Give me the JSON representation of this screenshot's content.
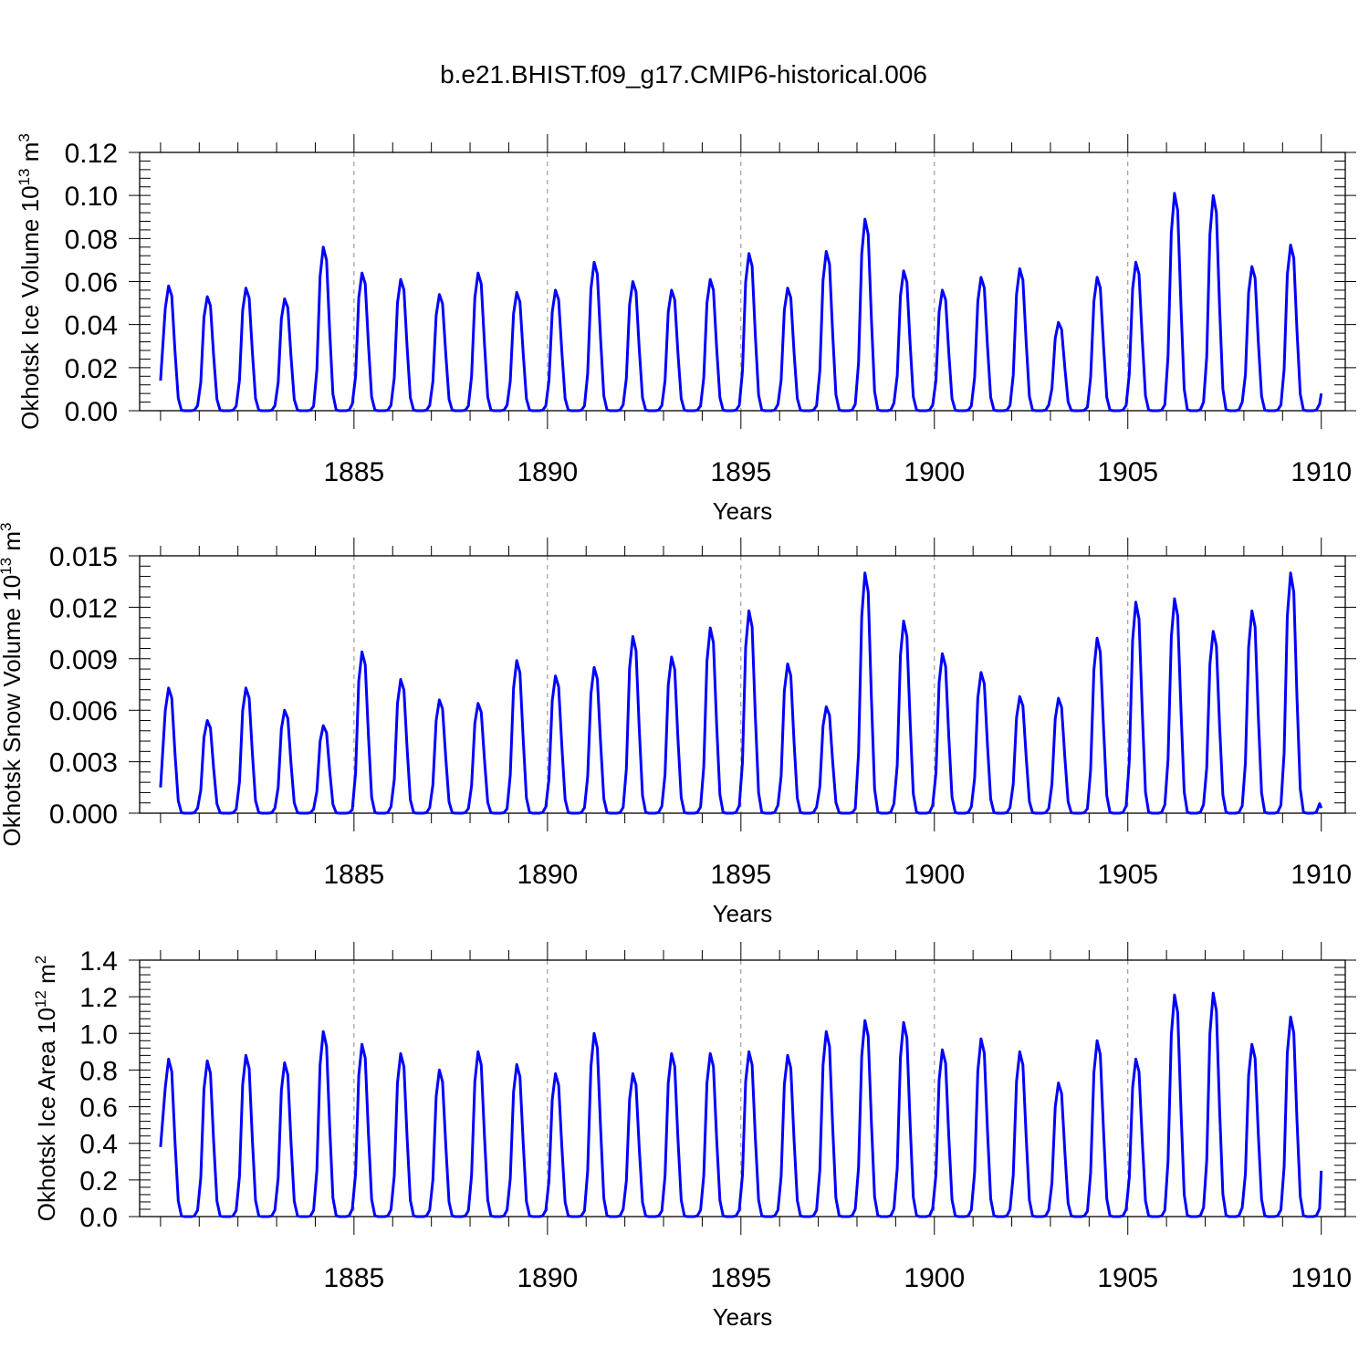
{
  "title": "b.e21.BHIST.f09_g17.CMIP6-historical.006",
  "colors": {
    "series": "#0000ff",
    "axis": "#000000",
    "grid": "#888888"
  },
  "chart_data": [
    {
      "type": "line",
      "ylabel_main": "Okhotsk Ice Volume 10",
      "ylabel_exp": "13",
      "ylabel_unit": " m",
      "ylabel_unit_exp": "3",
      "xlabel": "Years",
      "xlim": [
        1880,
        1910
      ],
      "ylim": [
        0,
        0.12
      ],
      "xticks": [
        1885,
        1890,
        1895,
        1900,
        1905,
        1910
      ],
      "xtick_labels": [
        "1885",
        "1890",
        "1895",
        "1900",
        "1905",
        "1910"
      ],
      "yticks": [
        0,
        0.02,
        0.04,
        0.06,
        0.08,
        0.1,
        0.12
      ],
      "ytick_labels": [
        "0.00",
        "0.02",
        "0.04",
        "0.06",
        "0.08",
        "0.10",
        "0.12"
      ],
      "grid": "vertical dashed at x ticks",
      "winter_peaks": [
        0.058,
        0.053,
        0.057,
        0.052,
        0.076,
        0.064,
        0.061,
        0.054,
        0.064,
        0.055,
        0.056,
        0.069,
        0.06,
        0.056,
        0.061,
        0.073,
        0.057,
        0.074,
        0.089,
        0.065,
        0.056,
        0.062,
        0.066,
        0.041,
        0.062,
        0.069,
        0.101,
        0.1,
        0.067,
        0.077
      ],
      "start_value": 0.014,
      "end_value": 0.008,
      "series_name": "ice volume"
    },
    {
      "type": "line",
      "ylabel_main": "Okhotsk Snow Volume 10",
      "ylabel_exp": "13",
      "ylabel_unit": " m",
      "ylabel_unit_exp": "3",
      "xlabel": "Years",
      "xlim": [
        1880,
        1910
      ],
      "ylim": [
        0,
        0.015
      ],
      "xticks": [
        1885,
        1890,
        1895,
        1900,
        1905,
        1910
      ],
      "xtick_labels": [
        "1885",
        "1890",
        "1895",
        "1900",
        "1905",
        "1910"
      ],
      "yticks": [
        0,
        0.003,
        0.006,
        0.009,
        0.012,
        0.015
      ],
      "ytick_labels": [
        "0.000",
        "0.003",
        "0.006",
        "0.009",
        "0.012",
        "0.015"
      ],
      "grid": "vertical dashed at x ticks",
      "winter_peaks": [
        0.0073,
        0.0054,
        0.0073,
        0.006,
        0.0051,
        0.0094,
        0.0078,
        0.0066,
        0.0064,
        0.0089,
        0.008,
        0.0085,
        0.0103,
        0.0091,
        0.0108,
        0.0118,
        0.0087,
        0.0062,
        0.014,
        0.0112,
        0.0093,
        0.0082,
        0.0068,
        0.0067,
        0.0102,
        0.0123,
        0.0125,
        0.0106,
        0.0118,
        0.014
      ],
      "start_value": 0.0015,
      "end_value": 0.0003,
      "series_name": "snow volume"
    },
    {
      "type": "line",
      "ylabel_main": "Okhotsk Ice Area 10",
      "ylabel_exp": "12",
      "ylabel_unit": " m",
      "ylabel_unit_exp": "2",
      "xlabel": "Years",
      "xlim": [
        1880,
        1910
      ],
      "ylim": [
        0,
        1.4
      ],
      "xticks": [
        1885,
        1890,
        1895,
        1900,
        1905,
        1910
      ],
      "xtick_labels": [
        "1885",
        "1890",
        "1895",
        "1900",
        "1905",
        "1910"
      ],
      "yticks": [
        0,
        0.2,
        0.4,
        0.6,
        0.8,
        1.0,
        1.2,
        1.4
      ],
      "ytick_labels": [
        "0.0",
        "0.2",
        "0.4",
        "0.6",
        "0.8",
        "1.0",
        "1.2",
        "1.4"
      ],
      "grid": "vertical dashed at x ticks",
      "winter_peaks": [
        0.86,
        0.85,
        0.88,
        0.84,
        1.01,
        0.94,
        0.89,
        0.8,
        0.9,
        0.83,
        0.78,
        1.0,
        0.78,
        0.89,
        0.89,
        0.9,
        0.88,
        1.01,
        1.07,
        1.06,
        0.91,
        0.97,
        0.9,
        0.73,
        0.96,
        0.86,
        1.21,
        1.22,
        0.94,
        1.09
      ],
      "start_value": 0.38,
      "end_value": 0.25,
      "series_name": "ice area"
    }
  ]
}
